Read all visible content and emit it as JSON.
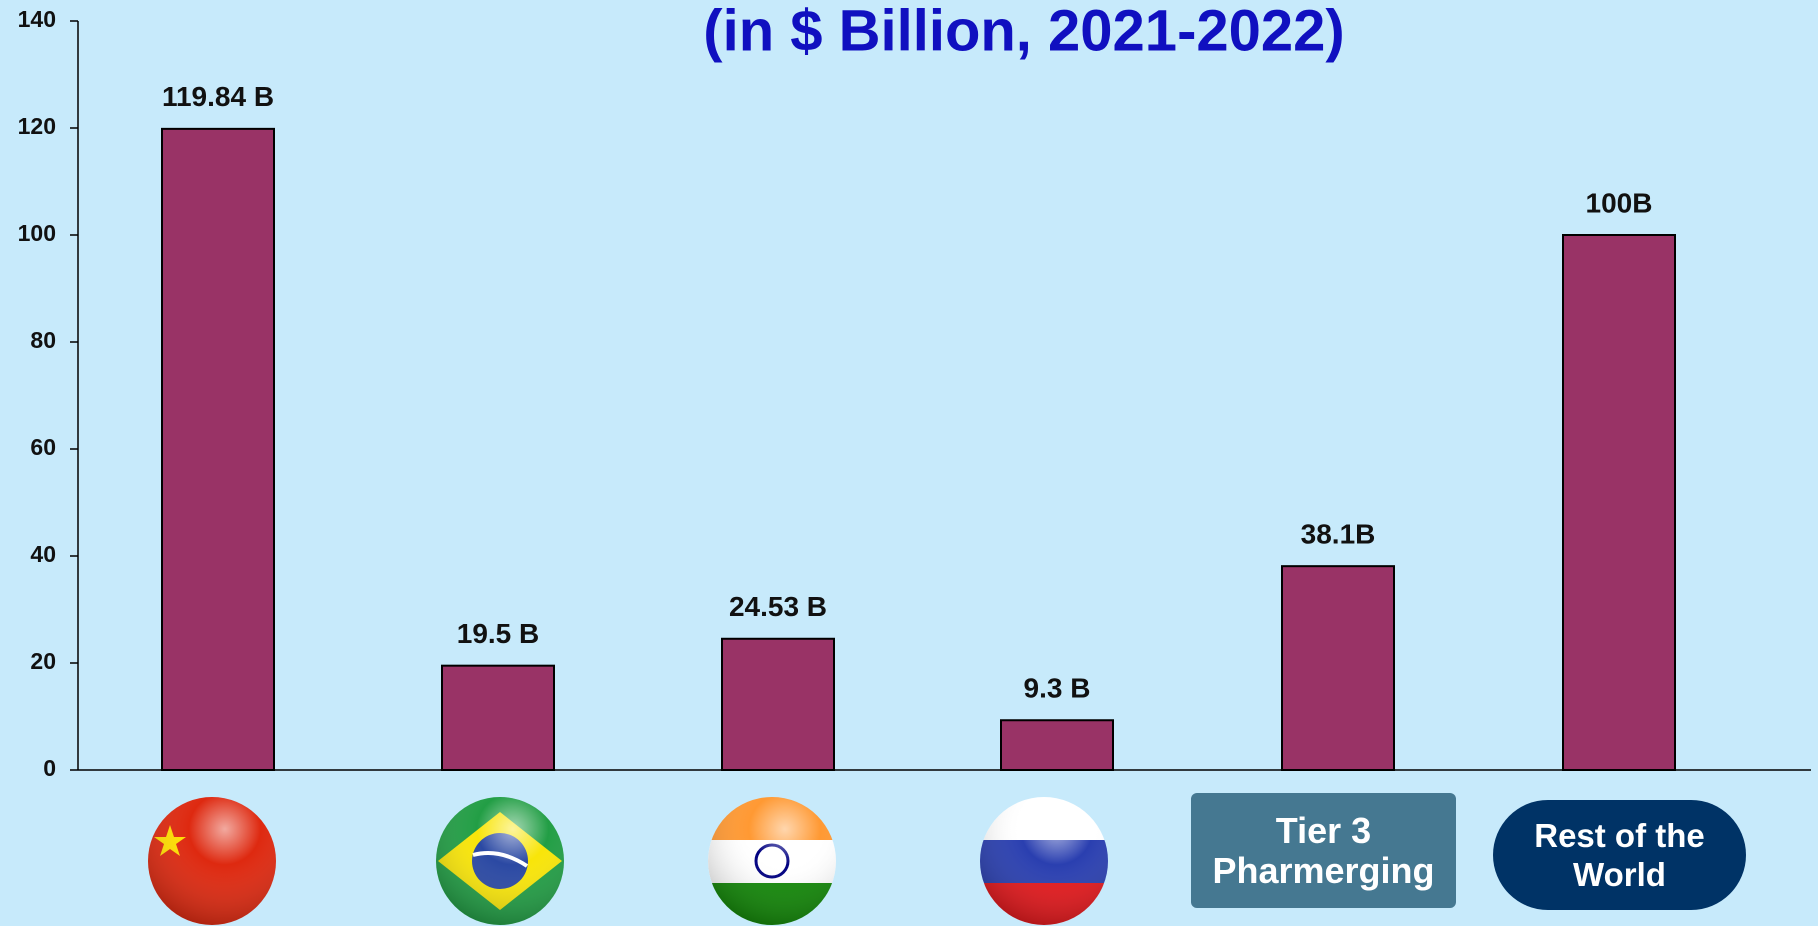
{
  "chart_data": {
    "type": "bar",
    "title": "(in $ Billion, 2021-2022)",
    "categories": [
      null,
      null,
      null,
      null,
      "Tier 3 Pharmerging",
      "Rest of the World"
    ],
    "values": [
      119.84,
      19.5,
      24.53,
      9.3,
      38.1,
      100
    ],
    "value_labels": [
      "119.84 B",
      "19.5 B",
      "24.53 B",
      "9.3 B",
      "38.1B",
      "100B"
    ],
    "color": "#993366",
    "ylim": [
      0,
      140
    ],
    "yticks": [
      0,
      20,
      40,
      60,
      80,
      100,
      120,
      140
    ],
    "grid": false
  }
}
